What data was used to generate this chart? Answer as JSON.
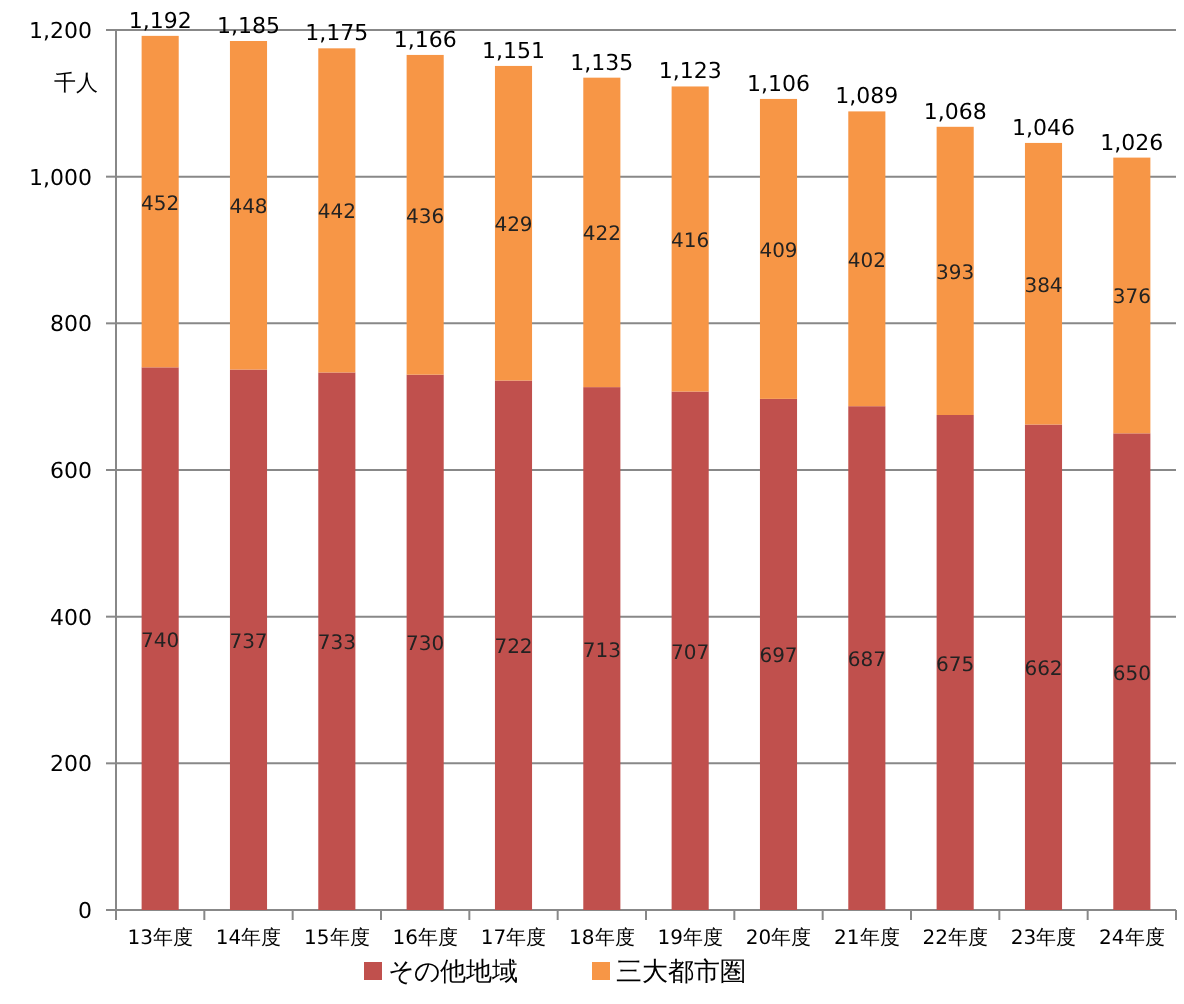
{
  "chart_data": {
    "type": "bar",
    "stacked": true,
    "ylabel": "千人",
    "categories": [
      "13年度",
      "14年度",
      "15年度",
      "16年度",
      "17年度",
      "18年度",
      "19年度",
      "20年度",
      "21年度",
      "22年度",
      "23年度",
      "24年度"
    ],
    "series": [
      {
        "name": "その他地域",
        "color": "#c0504d",
        "values": [
          740,
          737,
          733,
          730,
          722,
          713,
          707,
          697,
          687,
          675,
          662,
          650
        ]
      },
      {
        "name": "三大都市圏",
        "color": "#f79646",
        "values": [
          452,
          448,
          442,
          436,
          429,
          422,
          416,
          409,
          402,
          393,
          384,
          376
        ]
      }
    ],
    "data_labels": true,
    "totals": [
      "1,192",
      "1,185",
      "1,175",
      "1,166",
      "1,151",
      "1,135",
      "1,123",
      "1,106",
      "1,089",
      "1,068",
      "1,046",
      "1,026"
    ],
    "ylim": [
      0,
      1200
    ],
    "yticks": [
      {
        "value": 0,
        "label": "0"
      },
      {
        "value": 200,
        "label": "200"
      },
      {
        "value": 400,
        "label": "400"
      },
      {
        "value": 600,
        "label": "600"
      },
      {
        "value": 800,
        "label": "800"
      },
      {
        "value": 1000,
        "label": "1,000"
      },
      {
        "value": 1200,
        "label": "1,200"
      }
    ],
    "grid": "y",
    "legend": "bottom"
  }
}
